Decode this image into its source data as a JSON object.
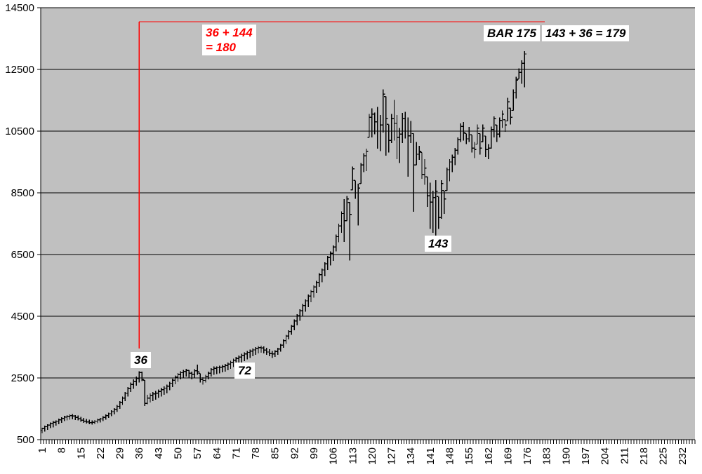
{
  "colors": {
    "page_bg": "#FFFFFF",
    "plot_bg": "#C0C0C0",
    "grid": "#000000",
    "bar": "#000000",
    "red": "#FF0000",
    "annotation_text": "#000000",
    "red_text": "#FF0000"
  },
  "annotations": {
    "red_formula_line1": "36 + 144",
    "red_formula_line2": "= 180",
    "bar_175": "BAR 175",
    "sum_right": "143 + 36 = 179",
    "label_36": "36",
    "label_72": "72",
    "label_143": "143"
  },
  "chart_data": {
    "type": "ohlc-bar",
    "title": "",
    "xlabel": "",
    "ylabel": "",
    "y_min": 500,
    "y_max": 14500,
    "y_ticks": [
      500,
      2500,
      4500,
      6500,
      8500,
      10500,
      12500,
      14500
    ],
    "x_tick_labels": [
      1,
      8,
      15,
      22,
      29,
      36,
      43,
      50,
      57,
      64,
      71,
      78,
      85,
      92,
      99,
      106,
      113,
      120,
      127,
      134,
      141,
      148,
      155,
      162,
      169,
      176,
      183,
      190,
      197,
      204,
      211,
      218,
      225,
      232
    ],
    "x_slots": 236,
    "bars_start": 1,
    "grid": "horizontal-only",
    "bars": [
      [
        890,
        700,
        860
      ],
      [
        950,
        760,
        920
      ],
      [
        1000,
        820,
        970
      ],
      [
        1060,
        870,
        1020
      ],
      [
        1100,
        900,
        1060
      ],
      [
        1130,
        950,
        1090
      ],
      [
        1180,
        1000,
        1140
      ],
      [
        1230,
        1050,
        1190
      ],
      [
        1270,
        1100,
        1230
      ],
      [
        1300,
        1130,
        1260
      ],
      [
        1320,
        1150,
        1280
      ],
      [
        1330,
        1160,
        1270
      ],
      [
        1300,
        1140,
        1220
      ],
      [
        1280,
        1120,
        1180
      ],
      [
        1240,
        1080,
        1130
      ],
      [
        1200,
        1050,
        1100
      ],
      [
        1170,
        1020,
        1070
      ],
      [
        1150,
        1000,
        1050
      ],
      [
        1130,
        990,
        1060
      ],
      [
        1140,
        1000,
        1090
      ],
      [
        1180,
        1030,
        1140
      ],
      [
        1210,
        1060,
        1170
      ],
      [
        1260,
        1100,
        1220
      ],
      [
        1320,
        1150,
        1280
      ],
      [
        1380,
        1200,
        1340
      ],
      [
        1450,
        1260,
        1410
      ],
      [
        1520,
        1320,
        1480
      ],
      [
        1620,
        1400,
        1580
      ],
      [
        1750,
        1500,
        1700
      ],
      [
        1900,
        1620,
        1850
      ],
      [
        2050,
        1750,
        2000
      ],
      [
        2200,
        1900,
        2150
      ],
      [
        2350,
        2050,
        2290
      ],
      [
        2450,
        2150,
        2380
      ],
      [
        2550,
        2250,
        2480
      ],
      [
        2720,
        2350,
        2680
      ],
      [
        2710,
        2400,
        2450
      ],
      [
        2430,
        1590,
        1680
      ],
      [
        1950,
        1650,
        1850
      ],
      [
        2000,
        1700,
        1930
      ],
      [
        2050,
        1750,
        1980
      ],
      [
        2080,
        1800,
        2010
      ],
      [
        2120,
        1850,
        2060
      ],
      [
        2180,
        1900,
        2120
      ],
      [
        2230,
        1950,
        2170
      ],
      [
        2280,
        2000,
        2230
      ],
      [
        2380,
        2100,
        2330
      ],
      [
        2480,
        2200,
        2430
      ],
      [
        2580,
        2300,
        2530
      ],
      [
        2660,
        2380,
        2610
      ],
      [
        2720,
        2450,
        2670
      ],
      [
        2760,
        2500,
        2710
      ],
      [
        2800,
        2550,
        2740
      ],
      [
        2750,
        2500,
        2650
      ],
      [
        2700,
        2450,
        2620
      ],
      [
        2780,
        2500,
        2730
      ],
      [
        2930,
        2600,
        2700
      ],
      [
        2650,
        2350,
        2450
      ],
      [
        2520,
        2280,
        2420
      ],
      [
        2600,
        2350,
        2550
      ],
      [
        2700,
        2450,
        2650
      ],
      [
        2820,
        2550,
        2770
      ],
      [
        2870,
        2600,
        2810
      ],
      [
        2880,
        2620,
        2830
      ],
      [
        2900,
        2650,
        2850
      ],
      [
        2920,
        2680,
        2870
      ],
      [
        2950,
        2700,
        2900
      ],
      [
        3000,
        2750,
        2950
      ],
      [
        3060,
        2800,
        3010
      ],
      [
        3120,
        2850,
        3070
      ],
      [
        3180,
        2900,
        3130
      ],
      [
        3230,
        2950,
        3180
      ],
      [
        3280,
        3000,
        3230
      ],
      [
        3330,
        3050,
        3280
      ],
      [
        3380,
        3100,
        3330
      ],
      [
        3420,
        3150,
        3370
      ],
      [
        3460,
        3200,
        3410
      ],
      [
        3500,
        3250,
        3450
      ],
      [
        3530,
        3300,
        3480
      ],
      [
        3550,
        3320,
        3470
      ],
      [
        3520,
        3300,
        3400
      ],
      [
        3480,
        3250,
        3340
      ],
      [
        3430,
        3200,
        3290
      ],
      [
        3380,
        3150,
        3280
      ],
      [
        3400,
        3180,
        3360
      ],
      [
        3480,
        3250,
        3440
      ],
      [
        3600,
        3350,
        3560
      ],
      [
        3750,
        3480,
        3710
      ],
      [
        3900,
        3600,
        3860
      ],
      [
        4050,
        3750,
        4010
      ],
      [
        4220,
        3900,
        4180
      ],
      [
        4400,
        4050,
        4350
      ],
      [
        4570,
        4200,
        4520
      ],
      [
        4730,
        4350,
        4680
      ],
      [
        4900,
        4500,
        4850
      ],
      [
        5050,
        4650,
        5000
      ],
      [
        5200,
        4800,
        5150
      ],
      [
        5350,
        4950,
        5300
      ],
      [
        5500,
        5100,
        5450
      ],
      [
        5650,
        5250,
        5600
      ],
      [
        5900,
        5450,
        5850
      ],
      [
        6050,
        5600,
        6000
      ],
      [
        6250,
        5800,
        6200
      ],
      [
        6450,
        6000,
        6400
      ],
      [
        6600,
        6150,
        6540
      ],
      [
        6800,
        6300,
        6740
      ],
      [
        7150,
        6600,
        7080
      ],
      [
        7500,
        6900,
        7430
      ],
      [
        7900,
        7200,
        7830
      ],
      [
        8300,
        6910,
        7600
      ],
      [
        8400,
        7600,
        8300
      ],
      [
        8190,
        6310,
        7800
      ],
      [
        9350,
        8600,
        9280
      ],
      [
        8900,
        8310,
        8500
      ],
      [
        8800,
        7440,
        8650
      ],
      [
        9470,
        8800,
        9400
      ],
      [
        9780,
        9170,
        9700
      ],
      [
        9930,
        9210,
        9850
      ],
      [
        11060,
        10300,
        10950
      ],
      [
        11240,
        10300,
        11050
      ],
      [
        11100,
        10400,
        10800
      ],
      [
        11280,
        9930,
        10500
      ],
      [
        11020,
        9850,
        10700
      ],
      [
        11850,
        10450,
        11700
      ],
      [
        11620,
        9700,
        10900
      ],
      [
        10720,
        9810,
        10200
      ],
      [
        11060,
        10110,
        10900
      ],
      [
        11510,
        10190,
        10750
      ],
      [
        11020,
        9590,
        10300
      ],
      [
        10600,
        9470,
        10400
      ],
      [
        11090,
        10110,
        10900
      ],
      [
        11130,
        10260,
        10500
      ],
      [
        10940,
        9020,
        10350
      ],
      [
        10830,
        10110,
        10500
      ],
      [
        10420,
        7890,
        9400
      ],
      [
        10150,
        9400,
        9750
      ],
      [
        10020,
        9570,
        9850
      ],
      [
        9810,
        8950,
        9100
      ],
      [
        9590,
        8760,
        9300
      ],
      [
        9020,
        8040,
        8400
      ],
      [
        8830,
        7330,
        8200
      ],
      [
        8570,
        7210,
        8350
      ],
      [
        8910,
        7100,
        8550
      ],
      [
        8380,
        7330,
        7700
      ],
      [
        8910,
        7660,
        8800
      ],
      [
        8570,
        7820,
        8300
      ],
      [
        9320,
        8570,
        9250
      ],
      [
        9590,
        8870,
        9500
      ],
      [
        9740,
        9170,
        9650
      ],
      [
        9960,
        9400,
        9880
      ],
      [
        10300,
        9740,
        10220
      ],
      [
        10750,
        10150,
        10650
      ],
      [
        10790,
        10190,
        10450
      ],
      [
        10420,
        10080,
        10250
      ],
      [
        10640,
        10150,
        10500
      ],
      [
        10380,
        9810,
        9950
      ],
      [
        10150,
        9630,
        9900
      ],
      [
        10720,
        10080,
        10600
      ],
      [
        10420,
        9740,
        9950
      ],
      [
        10720,
        10150,
        10600
      ],
      [
        10340,
        9660,
        9900
      ],
      [
        10080,
        9590,
        9950
      ],
      [
        10650,
        9930,
        10550
      ],
      [
        10980,
        10300,
        10900
      ],
      [
        10700,
        10150,
        10400
      ],
      [
        10940,
        10300,
        10850
      ],
      [
        11170,
        10600,
        11050
      ],
      [
        10870,
        10480,
        10700
      ],
      [
        11580,
        10830,
        11450
      ],
      [
        11240,
        10720,
        10950
      ],
      [
        11850,
        11170,
        11750
      ],
      [
        12260,
        11560,
        12150
      ],
      [
        12530,
        12190,
        12400
      ],
      [
        12800,
        12030,
        12700
      ],
      [
        13090,
        11920,
        13000
      ]
    ],
    "red_lines": {
      "vertical_at_bar": 36,
      "vertical_top_value": 14045,
      "vertical_bottom_value": 3455,
      "horizontal_value": 14045,
      "horizontal_start_bar": 36,
      "horizontal_end_bar": 182.3
    }
  }
}
